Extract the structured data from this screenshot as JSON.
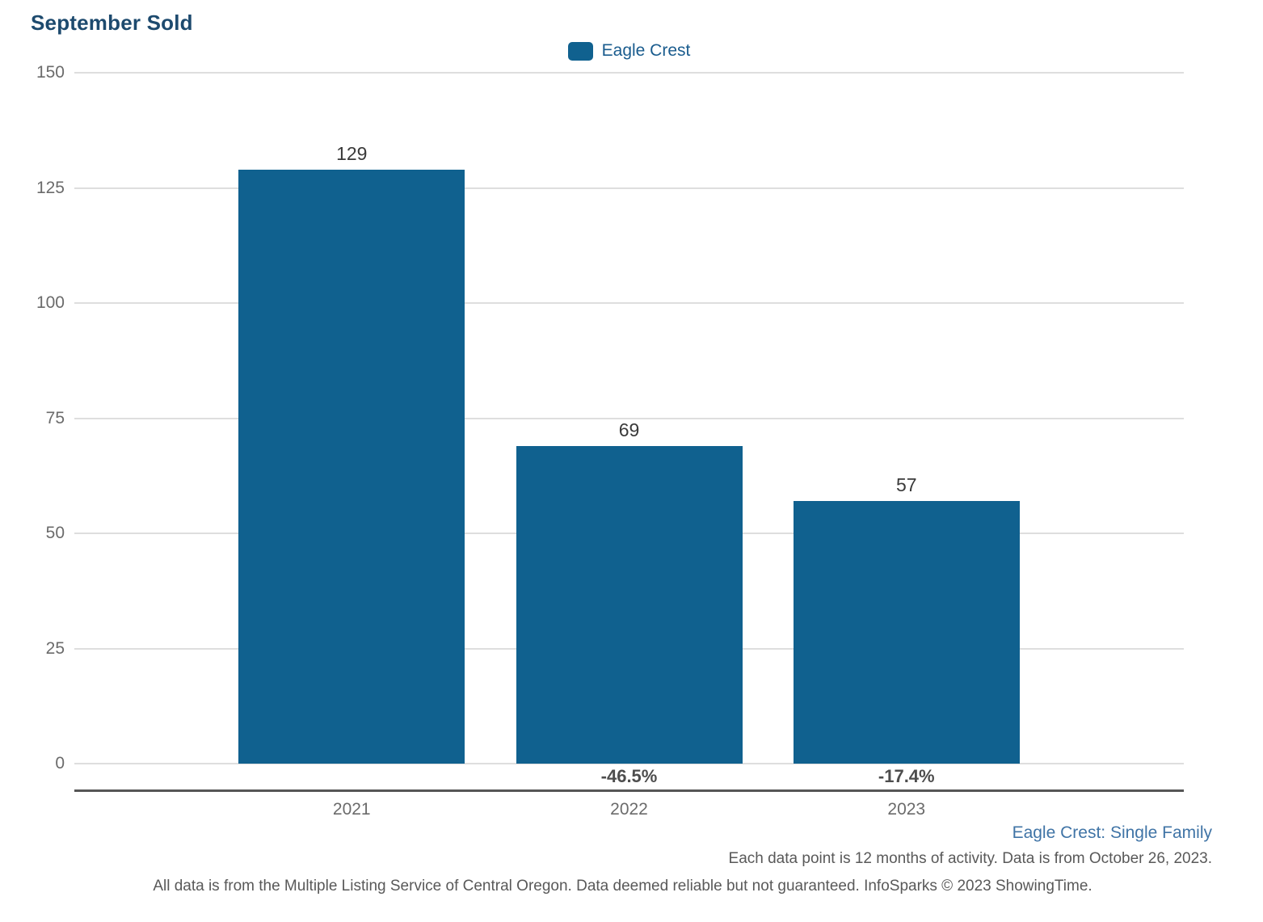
{
  "title": "September Sold",
  "legend": {
    "label": "Eagle Crest",
    "swatch_color": "#10618f"
  },
  "chart_data": {
    "type": "bar",
    "title": "September Sold",
    "categories": [
      "2021",
      "2022",
      "2023"
    ],
    "series": [
      {
        "name": "Eagle Crest",
        "values": [
          129,
          69,
          57
        ],
        "color": "#10618f"
      }
    ],
    "value_labels": [
      "129",
      "69",
      "57"
    ],
    "pct_change_labels": [
      "",
      "-46.5%",
      "-17.4%"
    ],
    "xlabel": "",
    "ylabel": "",
    "ylim": [
      0,
      150
    ],
    "yticks": [
      150,
      125,
      100,
      75,
      50,
      25,
      0
    ],
    "grid": true,
    "legend_position": "top-center"
  },
  "footer": {
    "series_note": "Eagle Crest: Single Family",
    "data_note": "Each data point is 12 months of activity. Data is from October 26, 2023.",
    "disclaimer": "All data is from the Multiple Listing Service of Central Oregon. Data deemed reliable but not guaranteed. InfoSparks © 2023 ShowingTime."
  },
  "colors": {
    "bar": "#10618f",
    "title_text": "#1d4a6e",
    "legend_text": "#1a5c8e",
    "gridline": "#dedede",
    "axis_line": "#565656",
    "tick_text": "#6b6b6b",
    "value_text": "#3a3a3a",
    "pct_text": "#4d4d4d",
    "series_note_text": "#4074a6",
    "footer_text": "#595959"
  }
}
